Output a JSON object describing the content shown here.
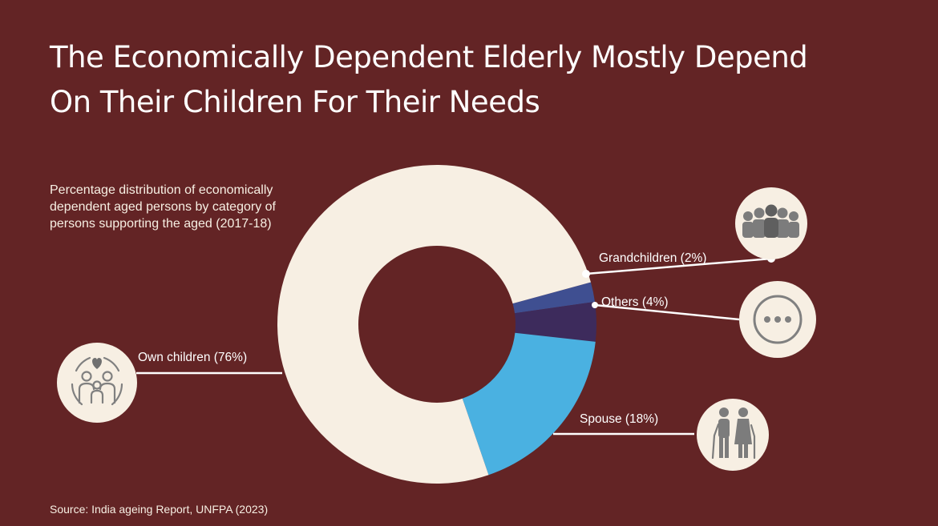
{
  "title_line1": "The Economically Dependent Elderly Mostly Depend",
  "title_line2": "On Their Children For Their Needs",
  "subtitle": "Percentage distribution of economically dependent aged persons by category of persons supporting the aged (2017-18)",
  "source": "Source: India ageing Report, UNFPA (2023)",
  "chart_data": {
    "type": "pie",
    "title": "Percentage distribution of economically dependent aged persons by category of persons supporting the aged (2017-18)",
    "unit": "%",
    "slices": [
      {
        "label": "Own children",
        "value": 76,
        "display": "Own children (76%)",
        "color": "#f7efe3",
        "icon": "family-heart-icon"
      },
      {
        "label": "Grandchildren",
        "value": 2,
        "display": "Grandchildren (2%)",
        "color": "#3f4f91",
        "icon": "group-people-icon"
      },
      {
        "label": "Others",
        "value": 4,
        "display": "Others (4%)",
        "color": "#3d2b5c",
        "icon": "ellipsis-icon"
      },
      {
        "label": "Spouse",
        "value": 18,
        "display": "Spouse (18%)",
        "color": "#4ab1e1",
        "icon": "elderly-couple-icon"
      }
    ]
  },
  "colors": {
    "background": "#632425",
    "icon_circle": "#f7efe3",
    "icon_gray": "#8a8a8a",
    "text": "#ffffff"
  }
}
